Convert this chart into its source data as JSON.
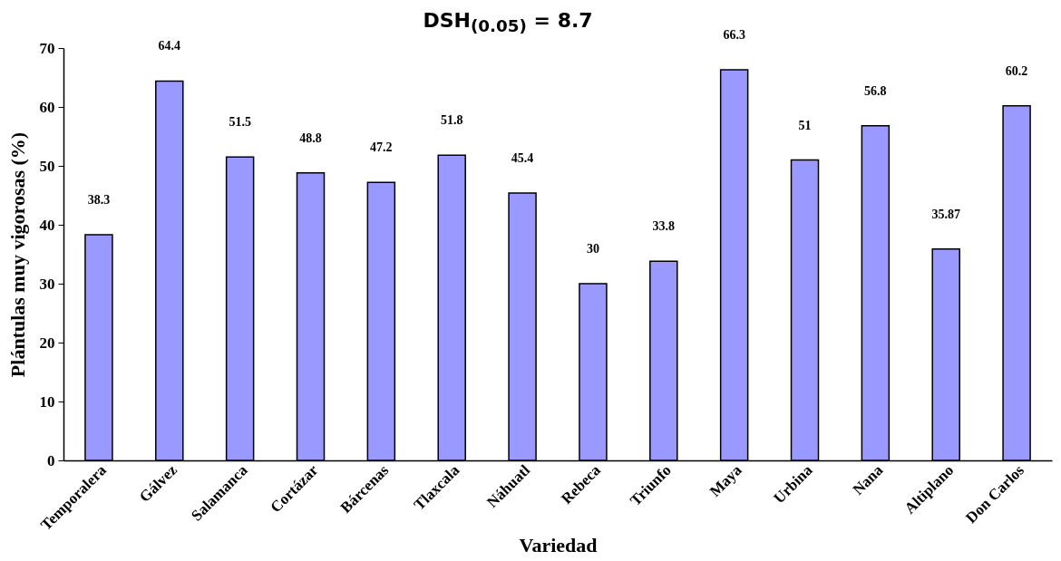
{
  "chart_data": {
    "type": "bar",
    "title": "DSH$_{(0.05)}$ = 8.7",
    "xlabel": "Variedad",
    "ylabel": "Plántulas muy vigorosas (%)",
    "categories": [
      "Temporalera",
      "Gálvez",
      "Salamanca",
      "Cortázar",
      "Bárcenas",
      "Tlaxcala",
      "Náhuatl",
      "Rebeca",
      "Triunfo",
      "Maya",
      "Urbina",
      "Nana",
      "Altiplano",
      "Don Carlos"
    ],
    "values": [
      38.3,
      64.4,
      51.5,
      48.8,
      47.2,
      51.8,
      45.4,
      30,
      33.8,
      66.3,
      51,
      56.8,
      35.87,
      60.2
    ],
    "color": "#9999ff",
    "ylim": [
      0,
      70
    ],
    "yticks": [
      0,
      10,
      20,
      30,
      40,
      50,
      60,
      70
    ],
    "data_labels": true
  }
}
